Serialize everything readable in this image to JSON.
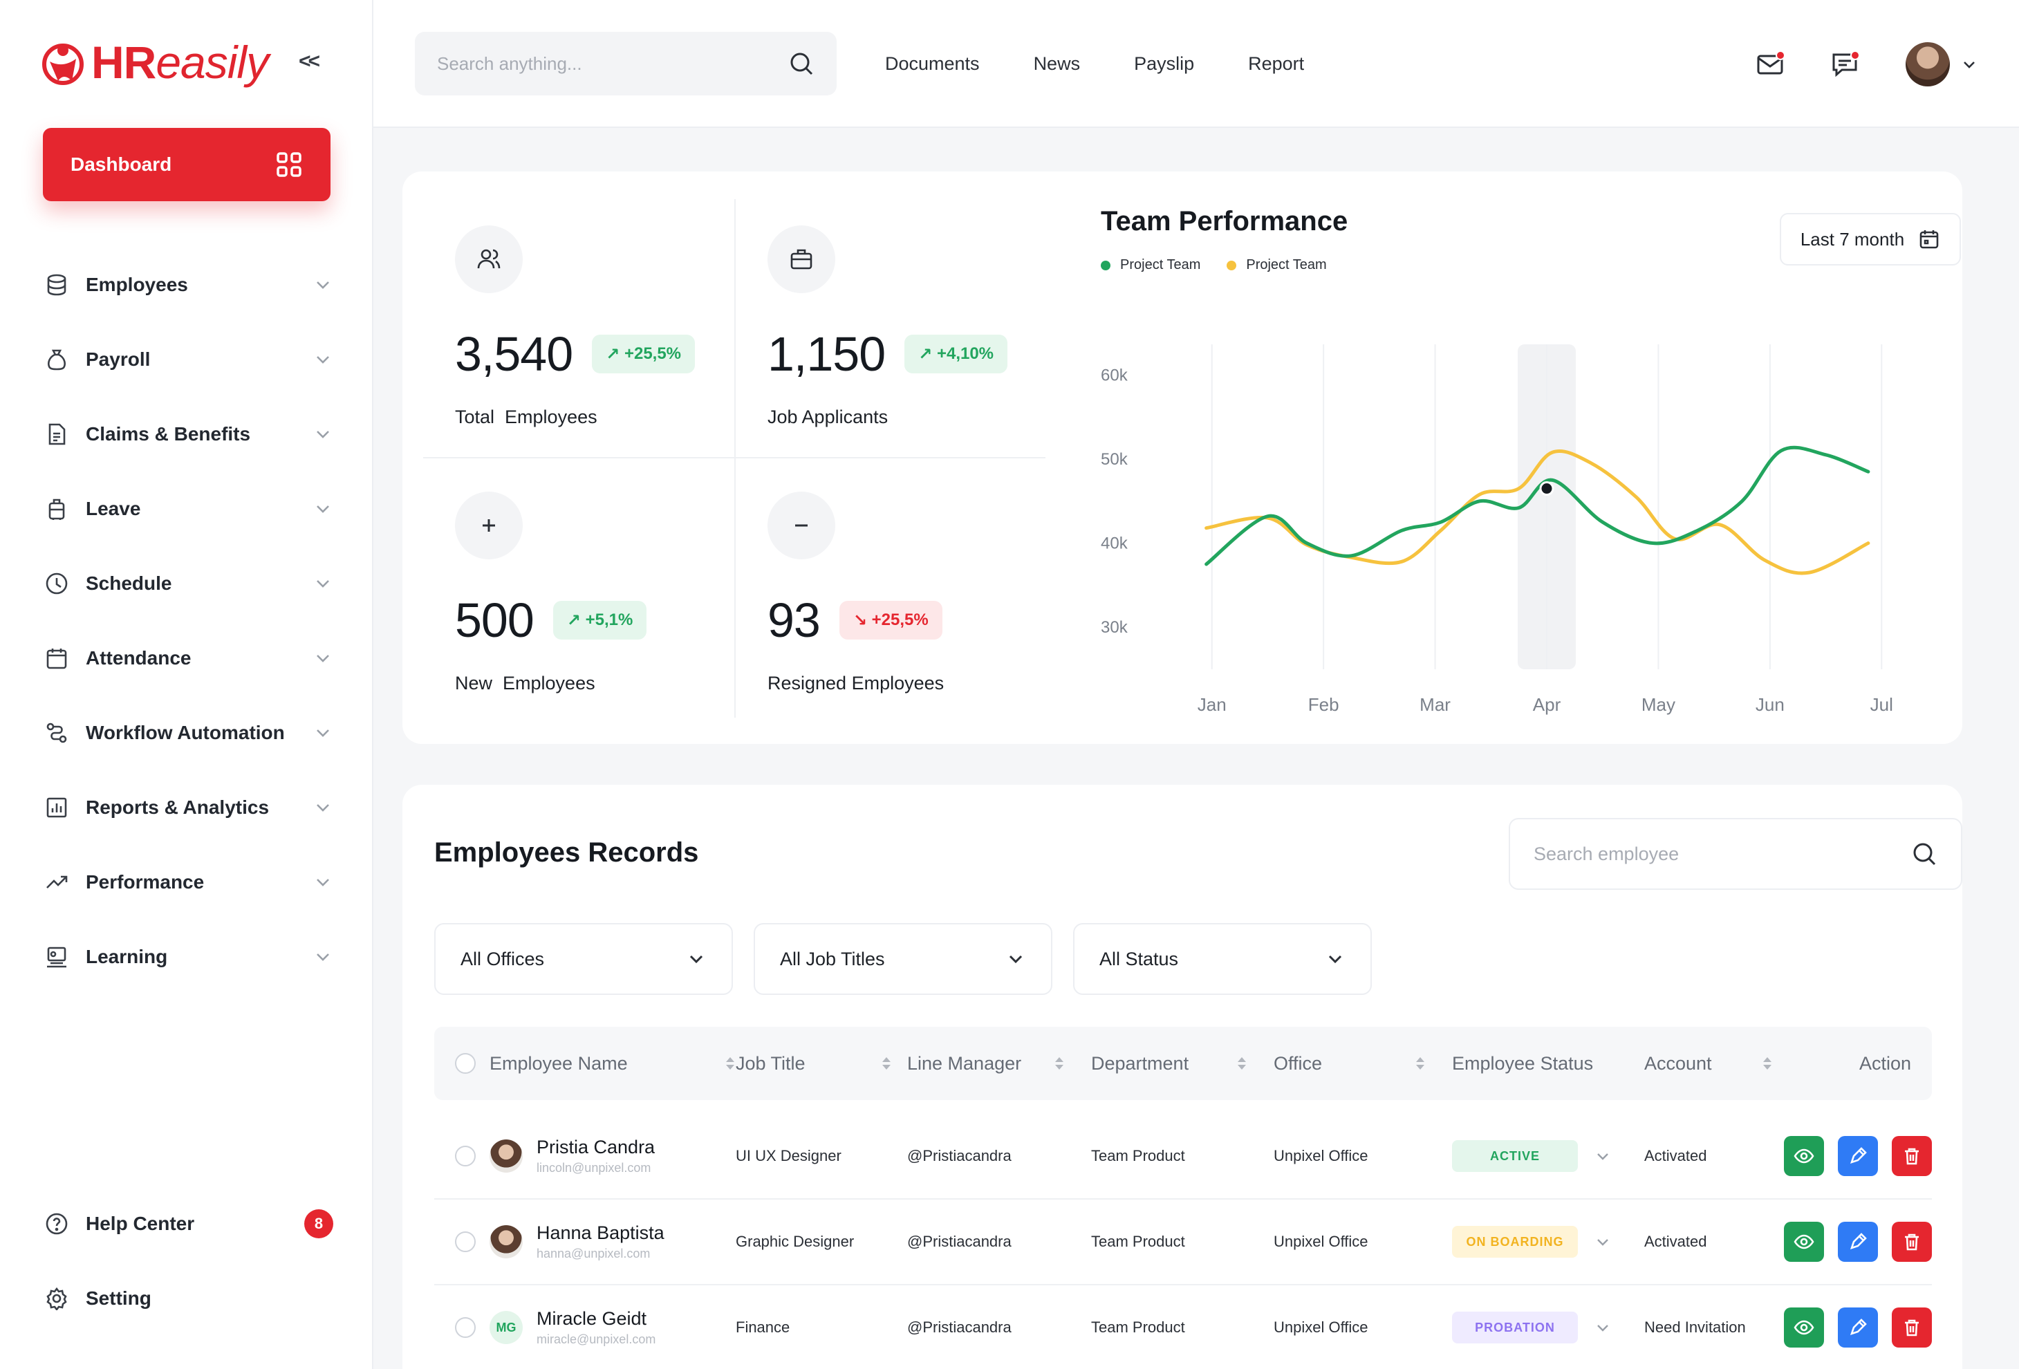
{
  "brand": {
    "name": "HReasily",
    "prefix": "HR",
    "suffix": "easily",
    "color": "#e0252f"
  },
  "sidebar": {
    "collapse_label": "<<",
    "dashboard_label": "Dashboard",
    "items": [
      {
        "label": "Employees",
        "icon": "database-icon"
      },
      {
        "label": "Payroll",
        "icon": "money-bag-icon"
      },
      {
        "label": "Claims & Benefits",
        "icon": "document-icon"
      },
      {
        "label": "Leave",
        "icon": "luggage-icon"
      },
      {
        "label": "Schedule",
        "icon": "clock-icon"
      },
      {
        "label": "Attendance",
        "icon": "calendar-icon"
      },
      {
        "label": "Workflow Automation",
        "icon": "workflow-icon"
      },
      {
        "label": "Reports & Analytics",
        "icon": "bar-chart-icon"
      },
      {
        "label": "Performance",
        "icon": "trend-icon"
      },
      {
        "label": "Learning",
        "icon": "learning-icon"
      }
    ],
    "bottom": [
      {
        "label": "Help Center",
        "icon": "help-icon",
        "badge": "8"
      },
      {
        "label": "Setting",
        "icon": "gear-icon"
      }
    ]
  },
  "topbar": {
    "search_placeholder": "Search anything...",
    "links": [
      "Documents",
      "News",
      "Payslip",
      "Report"
    ]
  },
  "stats": [
    {
      "value": "3,540",
      "change": "+25,5%",
      "trend": "up",
      "label": "Total  Employees",
      "icon": "users-icon"
    },
    {
      "value": "1,150",
      "change": "+4,10%",
      "trend": "up",
      "label": "Job Applicants",
      "icon": "briefcase-icon"
    },
    {
      "value": "500",
      "change": "+5,1%",
      "trend": "up",
      "label": "New  Employees",
      "icon": "plus-icon"
    },
    {
      "value": "93",
      "change": "+25,5%",
      "trend": "down",
      "label": "Resigned Employees",
      "icon": "minus-icon"
    }
  ],
  "team_performance": {
    "title": "Team Performance",
    "range_label": "Last 7 month",
    "legend": [
      {
        "name": "Project Team",
        "color": "#22a55e"
      },
      {
        "name": "Project Team",
        "color": "#f6c23e"
      }
    ]
  },
  "chart_data": {
    "type": "line",
    "title": "Team Performance",
    "categories": [
      "Jan",
      "Feb",
      "Mar",
      "Apr",
      "May",
      "Jun",
      "Jul"
    ],
    "y_ticks": [
      "60k",
      "50k",
      "40k",
      "30k"
    ],
    "ylim": [
      25000,
      62000
    ],
    "highlight_category": "Apr",
    "series": [
      {
        "name": "Project Team",
        "color": "#22a55e",
        "x": [
          0.45,
          1.0,
          1.35,
          1.75,
          2.2,
          2.55,
          2.9,
          3.25,
          3.55,
          4.0,
          4.45,
          4.85,
          5.25,
          5.6,
          6.0,
          6.38
        ],
        "values": [
          37500,
          43200,
          40000,
          38500,
          41500,
          42500,
          45000,
          44200,
          47500,
          42500,
          40000,
          41500,
          45000,
          51000,
          50500,
          48500
        ]
      },
      {
        "name": "Project Team",
        "color": "#f6c23e",
        "x": [
          0.45,
          1.0,
          1.35,
          1.75,
          2.2,
          2.55,
          2.9,
          3.25,
          3.55,
          3.9,
          4.3,
          4.65,
          5.05,
          5.45,
          5.85,
          6.38
        ],
        "values": [
          41800,
          43000,
          39800,
          38300,
          37800,
          41500,
          45800,
          46500,
          50800,
          49500,
          45500,
          40500,
          42200,
          38000,
          36500,
          40000
        ]
      }
    ]
  },
  "records": {
    "title": "Employees Records",
    "search_placeholder": "Search employee",
    "filters": [
      "All Offices",
      "All Job Titles",
      "All Status"
    ],
    "columns": [
      "Employee Name",
      "Job Title",
      "Line Manager",
      "Department",
      "Office",
      "Employee Status",
      "Account",
      "Action"
    ],
    "rows": [
      {
        "name": "Pristia Candra",
        "email": "lincoln@unpixel.com",
        "job": "UI UX Designer",
        "manager": "@Pristiacandra",
        "department": "Team Product",
        "office": "Unpixel Office",
        "status": "ACTIVE",
        "status_kind": "active",
        "account": "Activated",
        "avatar": "photo"
      },
      {
        "name": "Hanna Baptista",
        "email": "hanna@unpixel.com",
        "job": "Graphic Designer",
        "manager": "@Pristiacandra",
        "department": "Team Product",
        "office": "Unpixel Office",
        "status": "ON BOARDING",
        "status_kind": "onb",
        "account": "Activated",
        "avatar": "photo"
      },
      {
        "name": "Miracle Geidt",
        "email": "miracle@unpixel.com",
        "job": "Finance",
        "manager": "@Pristiacandra",
        "department": "Team Product",
        "office": "Unpixel Office",
        "status": "PROBATION",
        "status_kind": "prob",
        "account": "Need Invitation",
        "avatar": "MG"
      }
    ]
  }
}
